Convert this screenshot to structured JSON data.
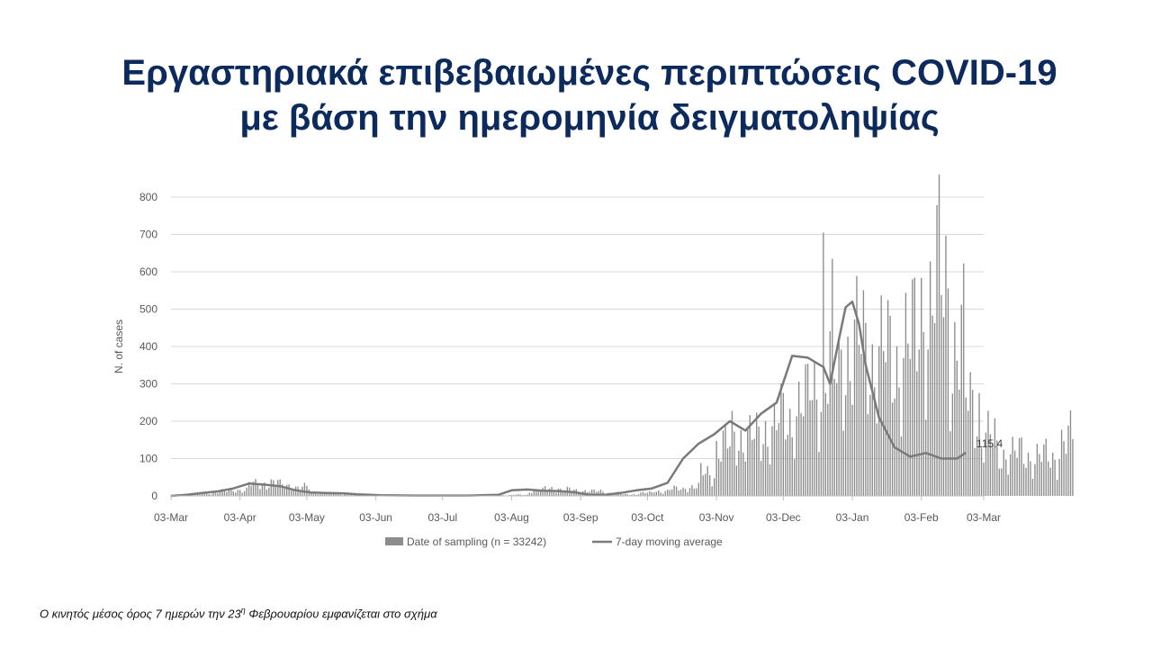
{
  "slide": {
    "title_line1": "Εργαστηριακά επιβεβαιωμένες περιπτώσεις COVID-19",
    "title_line2": "με βάση την ημερομηνία δειγματοληψίας",
    "footnote_before": "Ο κινητός μέσος όρος 7 ημερών την 23",
    "footnote_sup": "η",
    "footnote_after": " Φεβρουαρίου εμφανίζεται στο σχήμα"
  },
  "colors": {
    "title": "#0d2a5c",
    "bar": "#8c8c8c",
    "line": "#7a7a7a",
    "grid": "#d9d9d9",
    "axis_text": "#595959"
  },
  "chart_data": {
    "type": "bar",
    "ylabel": "N. of cases",
    "ylim": [
      0,
      800
    ],
    "yticks": [
      0,
      100,
      200,
      300,
      400,
      500,
      600,
      700,
      800
    ],
    "x_range": [
      "2020-03-03",
      "2021-03-03"
    ],
    "xtick_labels": [
      "03-Mar",
      "03-Apr",
      "03-May",
      "03-Jun",
      "03-Jul",
      "03-Aug",
      "03-Sep",
      "03-Oct",
      "03-Nov",
      "03-Dec",
      "03-Jan",
      "03-Feb",
      "03-Mar"
    ],
    "xtick_dates": [
      "2020-03-03",
      "2020-04-03",
      "2020-05-03",
      "2020-06-03",
      "2020-07-03",
      "2020-08-03",
      "2020-09-03",
      "2020-10-03",
      "2020-11-03",
      "2020-12-03",
      "2021-01-03",
      "2021-02-03",
      "2021-03-03"
    ],
    "legend_position": "bottom",
    "grid": true,
    "series": [
      {
        "name": "Date of sampling (n = 33242)",
        "type": "bar",
        "daily_from": "2020-03-03",
        "values_by_week": [
          1,
          3,
          8,
          12,
          16,
          30,
          35,
          28,
          22,
          10,
          6,
          5,
          4,
          2,
          1,
          1,
          1,
          1,
          1,
          1,
          1,
          2,
          3,
          14,
          20,
          16,
          14,
          12,
          8,
          4,
          8,
          13,
          18,
          24,
          60,
          130,
          160,
          150,
          180,
          200,
          240,
          290,
          320,
          380,
          390,
          370,
          360,
          400,
          500,
          560,
          400,
          250,
          150,
          115,
          110,
          105,
          100,
          145
        ]
      },
      {
        "name": "7-day moving average",
        "type": "line",
        "points": [
          [
            "2020-03-03",
            0
          ],
          [
            "2020-03-10",
            3
          ],
          [
            "2020-03-17",
            8
          ],
          [
            "2020-03-24",
            12
          ],
          [
            "2020-03-31",
            20
          ],
          [
            "2020-04-07",
            33
          ],
          [
            "2020-04-14",
            30
          ],
          [
            "2020-04-21",
            26
          ],
          [
            "2020-04-28",
            15
          ],
          [
            "2020-05-05",
            9
          ],
          [
            "2020-05-12",
            8
          ],
          [
            "2020-05-19",
            7
          ],
          [
            "2020-05-26",
            4
          ],
          [
            "2020-06-05",
            2
          ],
          [
            "2020-06-20",
            1
          ],
          [
            "2020-07-15",
            1
          ],
          [
            "2020-07-28",
            3
          ],
          [
            "2020-08-03",
            15
          ],
          [
            "2020-08-10",
            17
          ],
          [
            "2020-08-17",
            14
          ],
          [
            "2020-08-24",
            13
          ],
          [
            "2020-08-31",
            10
          ],
          [
            "2020-09-07",
            3
          ],
          [
            "2020-09-14",
            3
          ],
          [
            "2020-09-21",
            8
          ],
          [
            "2020-09-28",
            15
          ],
          [
            "2020-10-05",
            20
          ],
          [
            "2020-10-12",
            35
          ],
          [
            "2020-10-19",
            100
          ],
          [
            "2020-10-26",
            140
          ],
          [
            "2020-11-02",
            165
          ],
          [
            "2020-11-09",
            200
          ],
          [
            "2020-11-16",
            175
          ],
          [
            "2020-11-23",
            220
          ],
          [
            "2020-11-30",
            250
          ],
          [
            "2020-12-07",
            375
          ],
          [
            "2020-12-14",
            370
          ],
          [
            "2020-12-21",
            345
          ],
          [
            "2020-12-24",
            300
          ],
          [
            "2020-12-28",
            420
          ],
          [
            "2020-12-31",
            505
          ],
          [
            "2021-01-03",
            520
          ],
          [
            "2021-01-06",
            460
          ],
          [
            "2021-01-09",
            350
          ],
          [
            "2021-01-15",
            210
          ],
          [
            "2021-01-22",
            130
          ],
          [
            "2021-01-29",
            105
          ],
          [
            "2021-02-05",
            115
          ],
          [
            "2021-02-12",
            100
          ],
          [
            "2021-02-19",
            100
          ],
          [
            "2021-02-23",
            115.4
          ]
        ],
        "end_label": "115.4"
      }
    ]
  }
}
